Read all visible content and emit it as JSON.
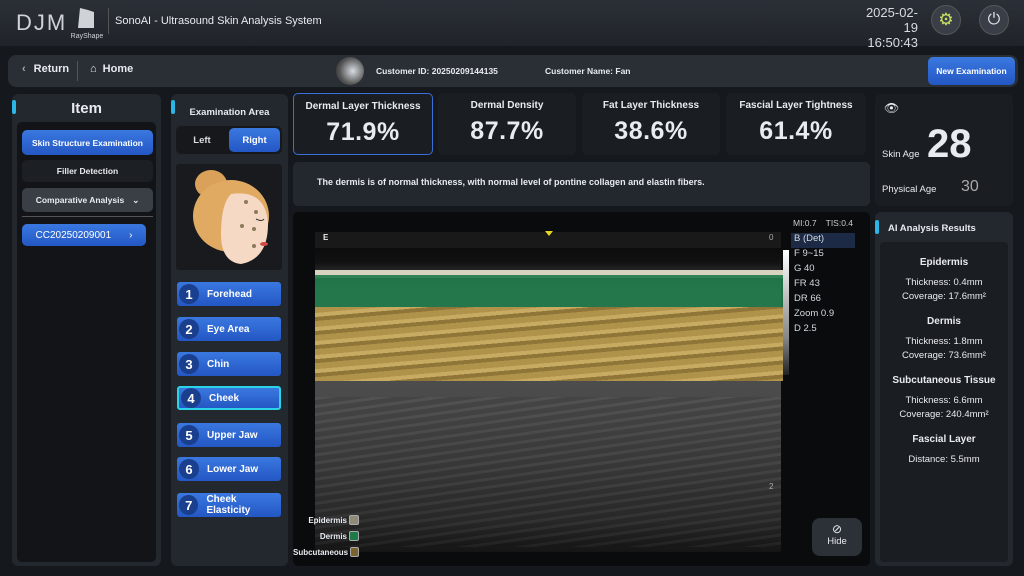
{
  "header": {
    "brand": "DJM",
    "sub_brand": "RayShape",
    "title": "SonoAI - Ultrasound Skin Analysis System",
    "date": "2025-02-19",
    "time": "16:50:43",
    "icons": [
      "settings-icon",
      "power-icon"
    ]
  },
  "nav": {
    "return_label": "Return",
    "home_label": "Home",
    "customer_id": "Customer ID: 20250209144135",
    "customer_name": "Customer Name: Fan",
    "new_exam_label": "New Examination"
  },
  "item_panel": {
    "title": "Item",
    "items": [
      "Skin Structure Examination",
      "Filler Detection",
      "Comparative Analysis"
    ],
    "record": "CC20250209001"
  },
  "exam_area": {
    "title": "Examination Area",
    "left": "Left",
    "right": "Right",
    "selected_side": "Right",
    "areas": [
      {
        "n": "1",
        "label": "Forehead"
      },
      {
        "n": "2",
        "label": "Eye Area"
      },
      {
        "n": "3",
        "label": "Chin"
      },
      {
        "n": "4",
        "label": "Cheek"
      },
      {
        "n": "5",
        "label": "Upper Jaw"
      },
      {
        "n": "6",
        "label": "Lower Jaw"
      },
      {
        "n": "7",
        "label": "Cheek Elasticity"
      }
    ],
    "selected_area": "Cheek"
  },
  "metrics": [
    {
      "label": "Dermal Layer Thickness",
      "value": "71.9%"
    },
    {
      "label": "Dermal Density",
      "value": "87.7%"
    },
    {
      "label": "Fat Layer Thickness",
      "value": "38.6%"
    },
    {
      "label": "Fascial Layer Tightness",
      "value": "61.4%"
    }
  ],
  "description": "The dermis is of normal thickness, with normal level of pontine collagen and elastin fibers.",
  "ultrasound": {
    "mi": "MI:0.7",
    "tis": "TIS:0.4",
    "mode": "B (Det)",
    "params": [
      "F 9~15",
      "G 40",
      "FR 43",
      "DR 66",
      "Zoom 0.9",
      "D 2.5"
    ],
    "e_marker": "E",
    "depth_0": "0",
    "depth_2": "2",
    "legend": [
      {
        "label": "Epidermis",
        "color": "#8f8a78"
      },
      {
        "label": "Dermis",
        "color": "#1f7a4a"
      },
      {
        "label": "Subcutaneous",
        "color": "#7a6530"
      }
    ],
    "hide_label": "Hide"
  },
  "age": {
    "skin_label": "Skin Age",
    "skin_value": "28",
    "physical_label": "Physical Age",
    "physical_value": "30"
  },
  "ai": {
    "title": "AI Analysis Results",
    "sections": [
      {
        "name": "Epidermis",
        "lines": [
          "Thickness: 0.4mm",
          "Coverage: 17.6mm²"
        ]
      },
      {
        "name": "Dermis",
        "lines": [
          "Thickness: 1.8mm",
          "Coverage: 73.6mm²"
        ]
      },
      {
        "name": "Subcutaneous Tissue",
        "lines": [
          "Thickness: 6.6mm",
          "Coverage: 240.4mm²"
        ]
      },
      {
        "name": "Fascial Layer",
        "lines": [
          "Distance: 5.5mm"
        ]
      }
    ]
  },
  "colors": {
    "accent": "#2d67d6",
    "highlight": "#2bd3e6",
    "dermis": "#1f7a4a",
    "fat": "#b89a4a"
  }
}
